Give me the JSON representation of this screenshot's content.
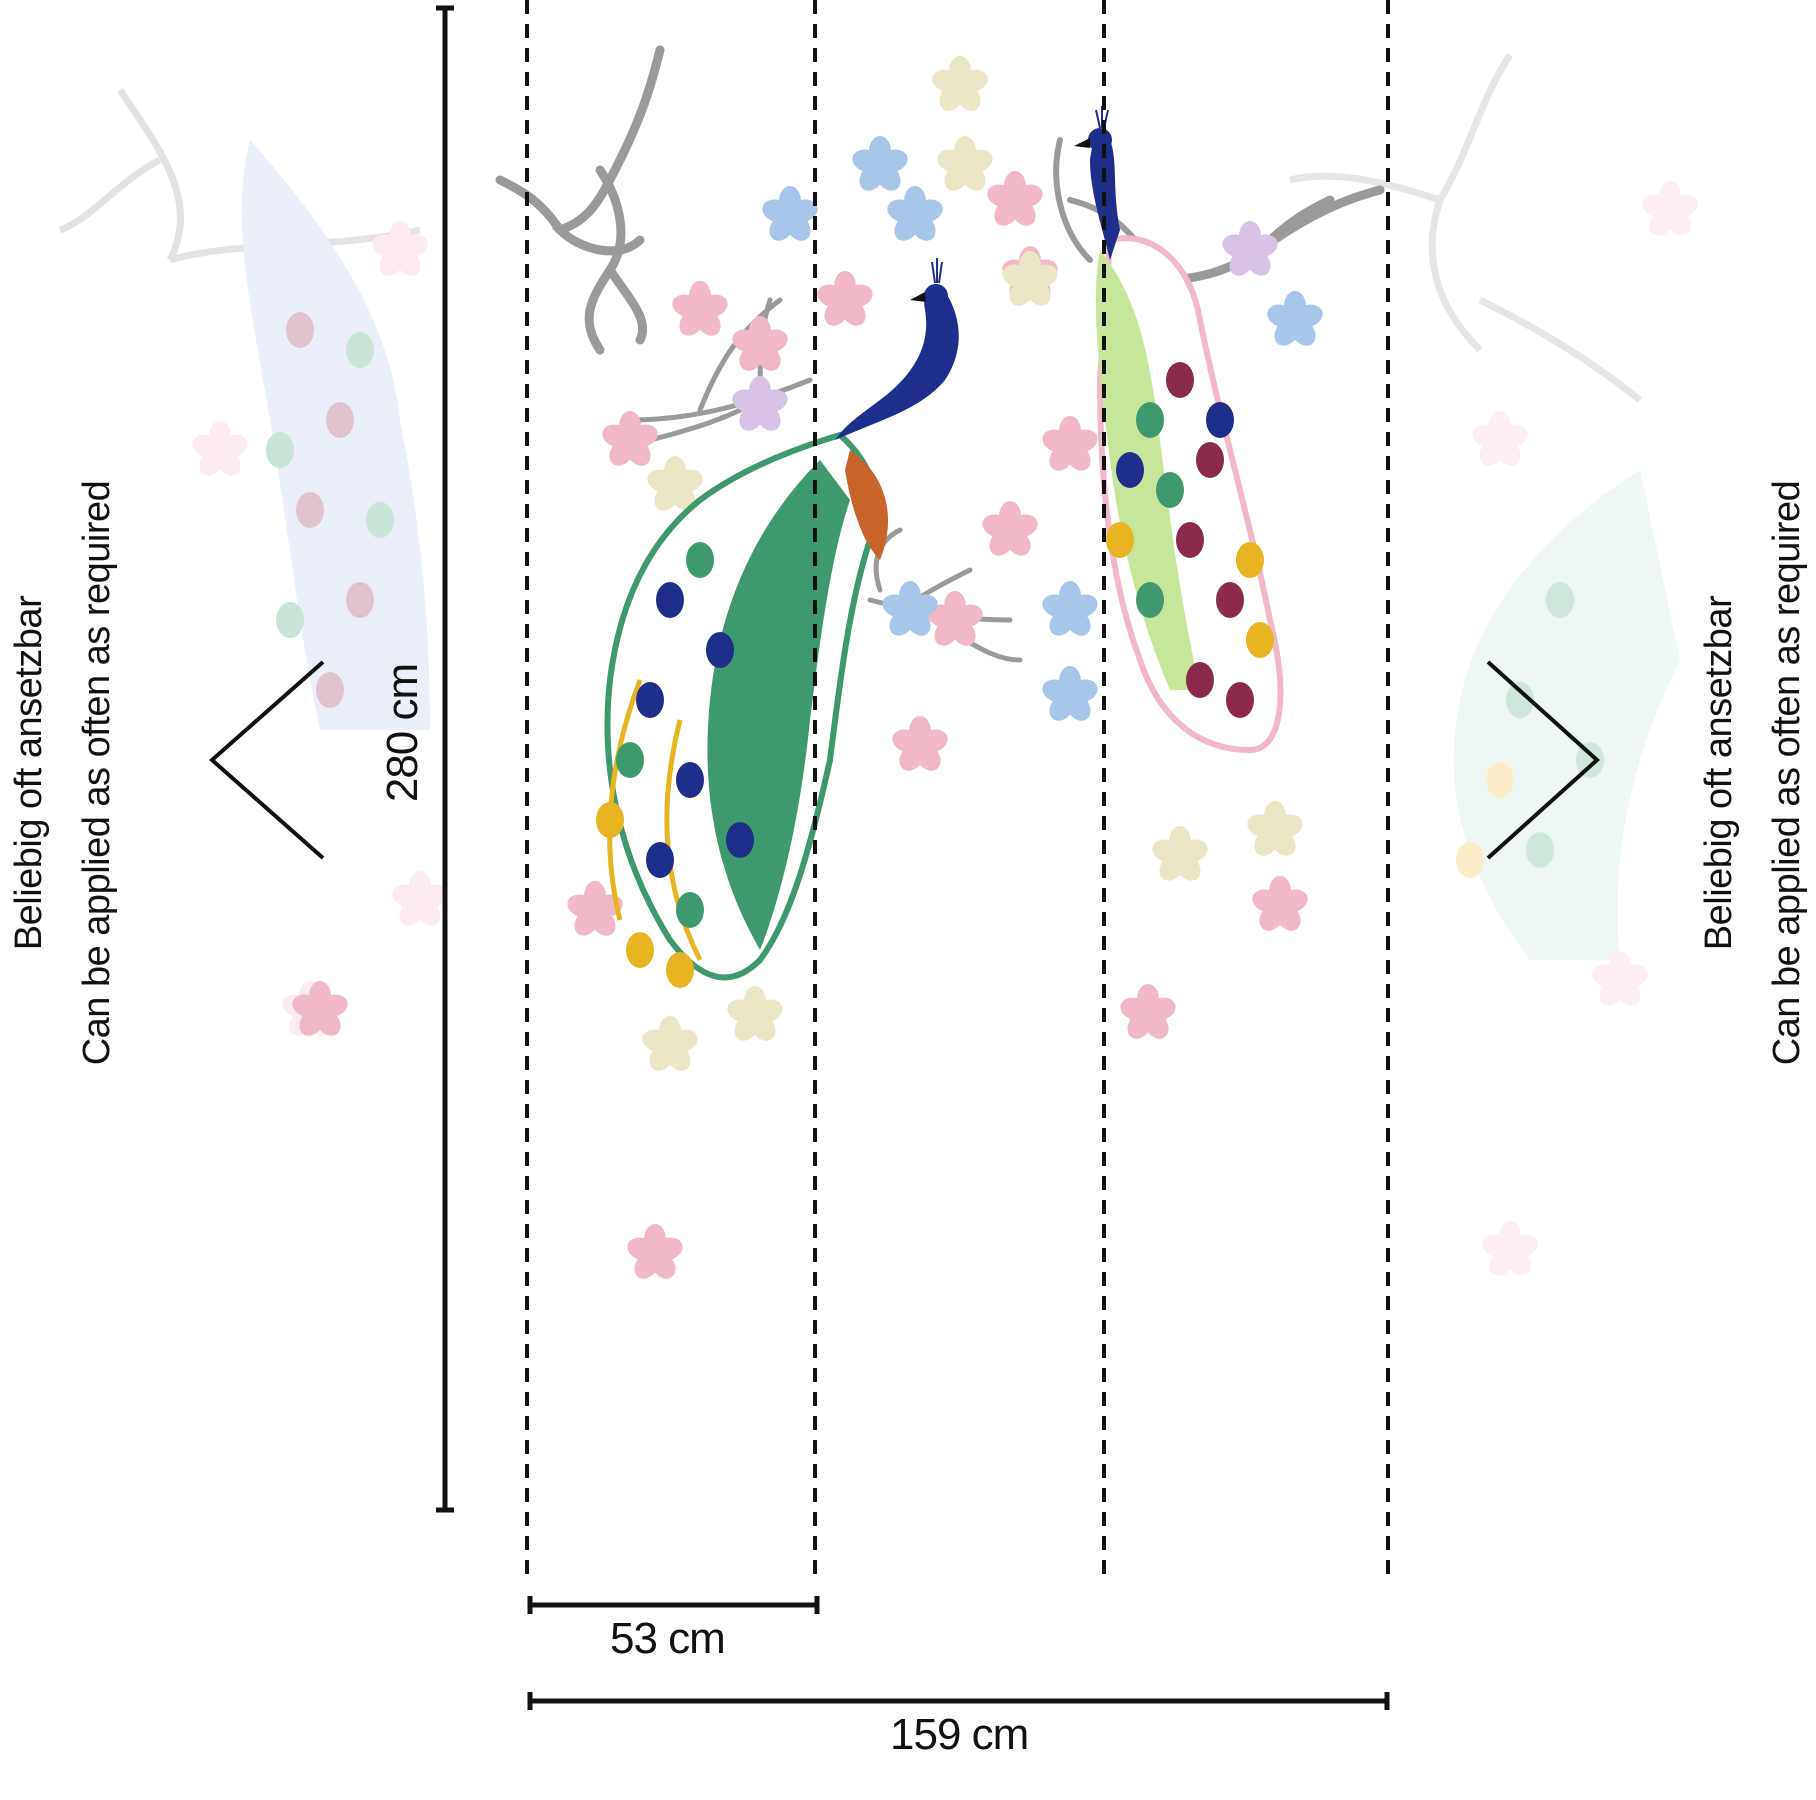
{
  "caption": {
    "line_de": "Beliebig oft ansetzbar",
    "line_en": "Can be applied as often as required"
  },
  "dimensions": {
    "height": "280 cm",
    "panel_width": "53 cm",
    "total_width": "159 cm"
  },
  "panel_count": 3,
  "colors": {
    "line": "#111111",
    "blossom_pink": "#f2b8c8",
    "blossom_blue": "#a9c6ea",
    "blossom_cream": "#ece6c8",
    "branch_gray": "#9a9a9a",
    "peacock_blue": "#1f2e8a",
    "peacock_green": "#3e9a6e",
    "feather_gold": "#e8b422",
    "feather_maroon": "#8c2a4c"
  }
}
